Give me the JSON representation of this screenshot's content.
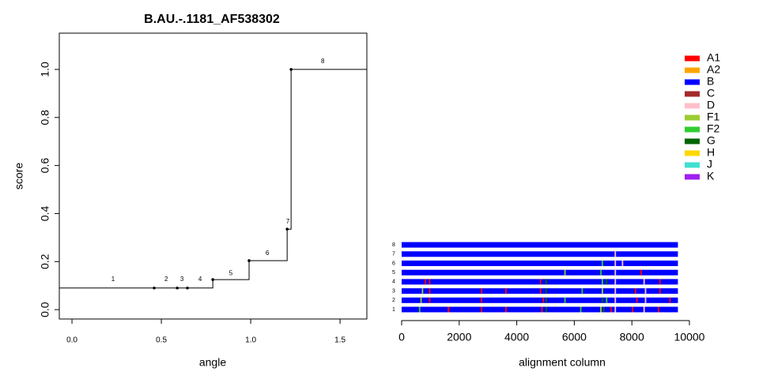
{
  "chart_data": [
    {
      "type": "step",
      "title": "B.AU.-.1181_AF538302",
      "x_label": "angle",
      "y_label": "score",
      "x": [
        0.46,
        0.589,
        0.646,
        0.788,
        0.991,
        1.204,
        1.226
      ],
      "values": [
        0.09,
        0.09,
        0.09,
        0.125,
        0.204,
        0.335,
        1.0
      ],
      "color": "#000000",
      "annotations": [
        {
          "label": "1",
          "x": 0.23,
          "y": 0.125
        },
        {
          "label": "2",
          "x": 0.527,
          "y": 0.125
        },
        {
          "label": "3",
          "x": 0.615,
          "y": 0.125
        },
        {
          "label": "4",
          "x": 0.717,
          "y": 0.125
        },
        {
          "label": "5",
          "x": 0.889,
          "y": 0.151
        },
        {
          "label": "6",
          "x": 1.093,
          "y": 0.234
        },
        {
          "label": "7",
          "x": 1.208,
          "y": 0.365
        },
        {
          "label": "8",
          "x": 1.403,
          "y": 1.033
        }
      ],
      "xlim": [
        -0.071,
        1.65
      ],
      "ylim": [
        -0.039,
        1.151
      ],
      "xticks": [
        {
          "value": 0,
          "label": "0.0"
        },
        0.5,
        {
          "value": 1,
          "label": "1.0"
        },
        1.5
      ],
      "yticks": [
        {
          "value": 0,
          "label": "0.0"
        },
        0.2,
        0.4,
        0.6,
        0.8,
        {
          "value": 1,
          "label": "1.0"
        }
      ]
    },
    {
      "type": "alignment",
      "x_label": "alignment column",
      "xlim": [
        0,
        10000
      ],
      "xticks": [
        0,
        2000,
        4000,
        6000,
        8000,
        10000
      ],
      "legend": [
        {
          "name": "A1",
          "color": "#ff0000"
        },
        {
          "name": "A2",
          "color": "#ffa500"
        },
        {
          "name": "B",
          "color": "#0000ff"
        },
        {
          "name": "C",
          "color": "#a52a2a"
        },
        {
          "name": "D",
          "color": "#ffc0cb"
        },
        {
          "name": "F1",
          "color": "#9acd32"
        },
        {
          "name": "F2",
          "color": "#32cd32"
        },
        {
          "name": "G",
          "color": "#006400"
        },
        {
          "name": "H",
          "color": "#ffd700"
        },
        {
          "name": "J",
          "color": "#40e0d0"
        },
        {
          "name": "K",
          "color": "#a020f0"
        }
      ],
      "rows": [
        {
          "label": "1",
          "segments": [
            [
              0,
              9600,
              "B"
            ],
            [
              600,
              650,
              "F2"
            ],
            [
              1600,
              1660,
              "A1"
            ],
            [
              2750,
              2800,
              "A1"
            ],
            [
              3600,
              3650,
              "A1"
            ],
            [
              4850,
              4900,
              "A1"
            ],
            [
              5000,
              5050,
              "G"
            ],
            [
              6200,
              6250,
              "F2"
            ],
            [
              6900,
              6950,
              "F1"
            ],
            [
              7000,
              7050,
              "G"
            ],
            [
              7250,
              7300,
              "A1"
            ],
            [
              7400,
              7450,
              "D"
            ],
            [
              8000,
              8050,
              "A1"
            ],
            [
              8400,
              8450,
              "D"
            ],
            [
              8900,
              8950,
              "A1"
            ]
          ]
        },
        {
          "label": "2",
          "segments": [
            [
              0,
              9600,
              "B"
            ],
            [
              650,
              700,
              "F1"
            ],
            [
              950,
              1000,
              "A1"
            ],
            [
              2750,
              2800,
              "A1"
            ],
            [
              4900,
              4950,
              "A1"
            ],
            [
              5000,
              5050,
              "G"
            ],
            [
              5650,
              5700,
              "F2"
            ],
            [
              6950,
              7000,
              "G"
            ],
            [
              7100,
              7150,
              "F2"
            ],
            [
              7400,
              7450,
              "D"
            ],
            [
              8150,
              8200,
              "A1"
            ],
            [
              8450,
              8500,
              "D"
            ],
            [
              9300,
              9350,
              "A1"
            ]
          ]
        },
        {
          "label": "3",
          "segments": [
            [
              0,
              9600,
              "B"
            ],
            [
              700,
              750,
              "F1"
            ],
            [
              950,
              1000,
              "A1"
            ],
            [
              2750,
              2800,
              "A1"
            ],
            [
              3600,
              3650,
              "A1"
            ],
            [
              4800,
              4850,
              "A1"
            ],
            [
              5000,
              5050,
              "G"
            ],
            [
              6250,
              6300,
              "F2"
            ],
            [
              6950,
              7000,
              "F1"
            ],
            [
              7400,
              7450,
              "D"
            ],
            [
              8100,
              8150,
              "A1"
            ],
            [
              8450,
              8500,
              "D"
            ],
            [
              8950,
              9000,
              "A1"
            ]
          ]
        },
        {
          "label": "4",
          "segments": [
            [
              0,
              9600,
              "B"
            ],
            [
              800,
              850,
              "A1"
            ],
            [
              950,
              1000,
              "A1"
            ],
            [
              4800,
              4850,
              "A1"
            ],
            [
              5000,
              5050,
              "G"
            ],
            [
              6950,
              7000,
              "F2"
            ],
            [
              7100,
              7150,
              "G"
            ],
            [
              7400,
              7450,
              "D"
            ],
            [
              8400,
              8450,
              "D"
            ],
            [
              8950,
              9000,
              "A1"
            ]
          ]
        },
        {
          "label": "5",
          "segments": [
            [
              0,
              9600,
              "B"
            ],
            [
              5650,
              5700,
              "F1"
            ],
            [
              6900,
              6950,
              "F2"
            ],
            [
              7400,
              7450,
              "D"
            ],
            [
              8300,
              8350,
              "A1"
            ]
          ]
        },
        {
          "label": "6",
          "segments": [
            [
              0,
              9600,
              "B"
            ],
            [
              6950,
              7000,
              "F2"
            ],
            [
              7400,
              7450,
              "D"
            ],
            [
              7650,
              7700,
              "D"
            ]
          ]
        },
        {
          "label": "7",
          "segments": [
            [
              0,
              9600,
              "B"
            ],
            [
              7400,
              7450,
              "D"
            ]
          ]
        },
        {
          "label": "8",
          "segments": [
            [
              0,
              9600,
              "B"
            ]
          ]
        }
      ]
    }
  ]
}
